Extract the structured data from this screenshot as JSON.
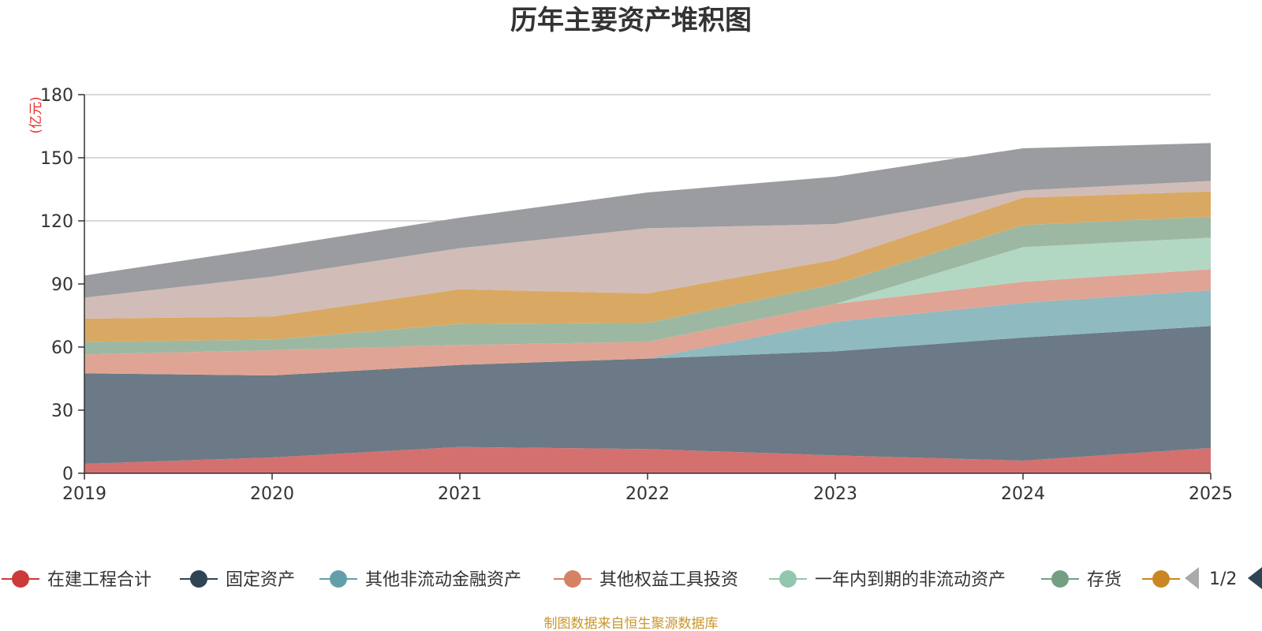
{
  "chart_data": {
    "type": "area",
    "stacked": true,
    "title": "历年主要资产堆积图",
    "unit_label": "(亿元)",
    "categories": [
      "2019",
      "2020",
      "2021",
      "2022",
      "2023",
      "2024",
      "2025"
    ],
    "ylim": [
      0,
      180
    ],
    "yticks": [
      0,
      30,
      60,
      90,
      120,
      150,
      180
    ],
    "grid": true,
    "series": [
      {
        "name": "在建工程合计",
        "color": "#d4716f",
        "values": [
          4.5,
          7.5,
          12.5,
          11.5,
          8.5,
          6,
          12
        ]
      },
      {
        "name": "固定资产",
        "color": "#6b7a86",
        "values": [
          43,
          39,
          39,
          43,
          49.5,
          58.5,
          58
        ]
      },
      {
        "name": "其他非流动金融资产",
        "color": "#8fbac0",
        "values": [
          0,
          0,
          0,
          0,
          14,
          16.5,
          17
        ]
      },
      {
        "name": "其他权益工具投资",
        "color": "#e0a494",
        "values": [
          9,
          12,
          9.5,
          8,
          8.5,
          10,
          10
        ]
      },
      {
        "name": "一年内到期的非流动资产",
        "color": "#b2d8c4",
        "values": [
          0,
          0,
          0,
          0,
          0,
          16.5,
          15
        ]
      },
      {
        "name": "存货",
        "color": "#9db8a2",
        "values": [
          6,
          5,
          10,
          9,
          9.5,
          10.5,
          10
        ]
      },
      {
        "name": "",
        "color": "#d9a963",
        "values": [
          11,
          11,
          16.5,
          14,
          11.5,
          13,
          12
        ]
      },
      {
        "name": "",
        "color": "#d1bcb8",
        "values": [
          10,
          19,
          19.5,
          31,
          17,
          3.5,
          5
        ]
      },
      {
        "name": "",
        "color": "#9a9c9f",
        "values": [
          10.5,
          14,
          14.5,
          17,
          22.5,
          20,
          18
        ]
      }
    ],
    "legend": {
      "placement": "bottom",
      "page": "1/2"
    }
  },
  "legend_marker_colors": [
    "#cc3a39",
    "#2f4554",
    "#61a0a8",
    "#d48265",
    "#91c7ae",
    "#749f83",
    "#ca8622"
  ],
  "source_note": "制图数据来自恒生聚源数据库"
}
